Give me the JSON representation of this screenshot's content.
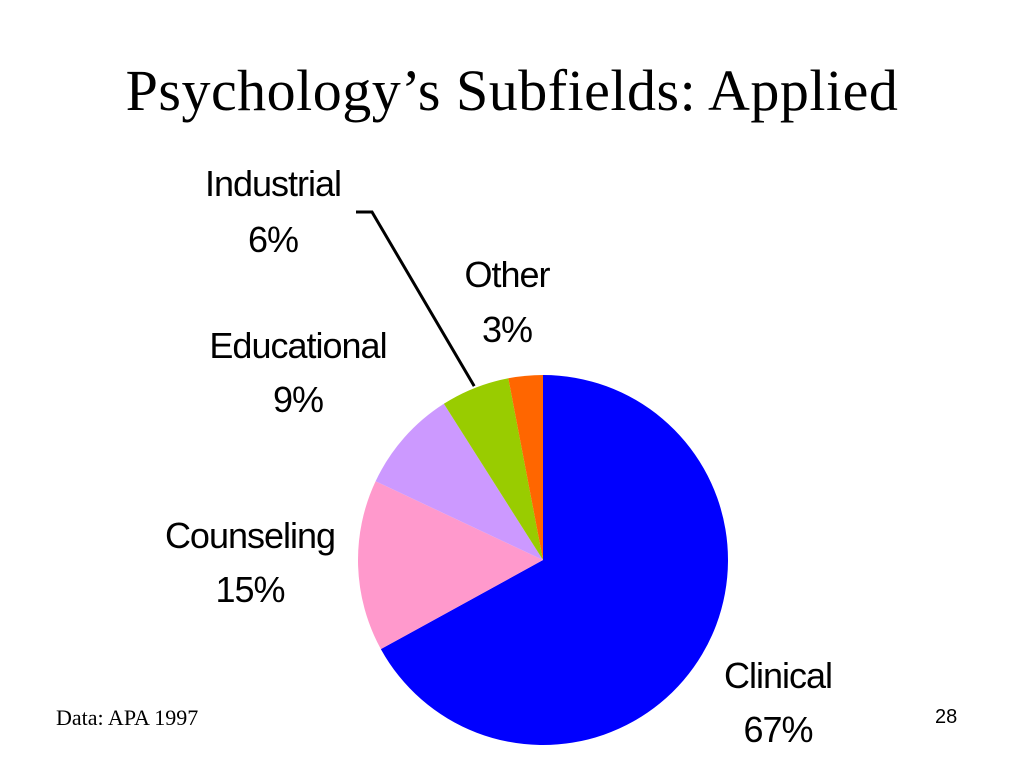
{
  "slide": {
    "title": "Psychology’s Subfields: Applied",
    "source": "Data: APA 1997",
    "page_number": "28"
  },
  "chart_data": {
    "type": "pie",
    "title": "Psychology’s Subfields: Applied",
    "slices": [
      {
        "name": "Clinical",
        "value": 67,
        "label": "67%",
        "color": "#0000FF"
      },
      {
        "name": "Counseling",
        "value": 15,
        "label": "15%",
        "color": "#FF99CC"
      },
      {
        "name": "Educational",
        "value": 9,
        "label": "9%",
        "color": "#CC99FF"
      },
      {
        "name": "Industrial",
        "value": 6,
        "label": "6%",
        "color": "#99CC00"
      },
      {
        "name": "Other",
        "value": 3,
        "label": "3%",
        "color": "#FF6600"
      }
    ],
    "start": "12 o'clock",
    "direction": "clockwise",
    "legend": "none"
  }
}
